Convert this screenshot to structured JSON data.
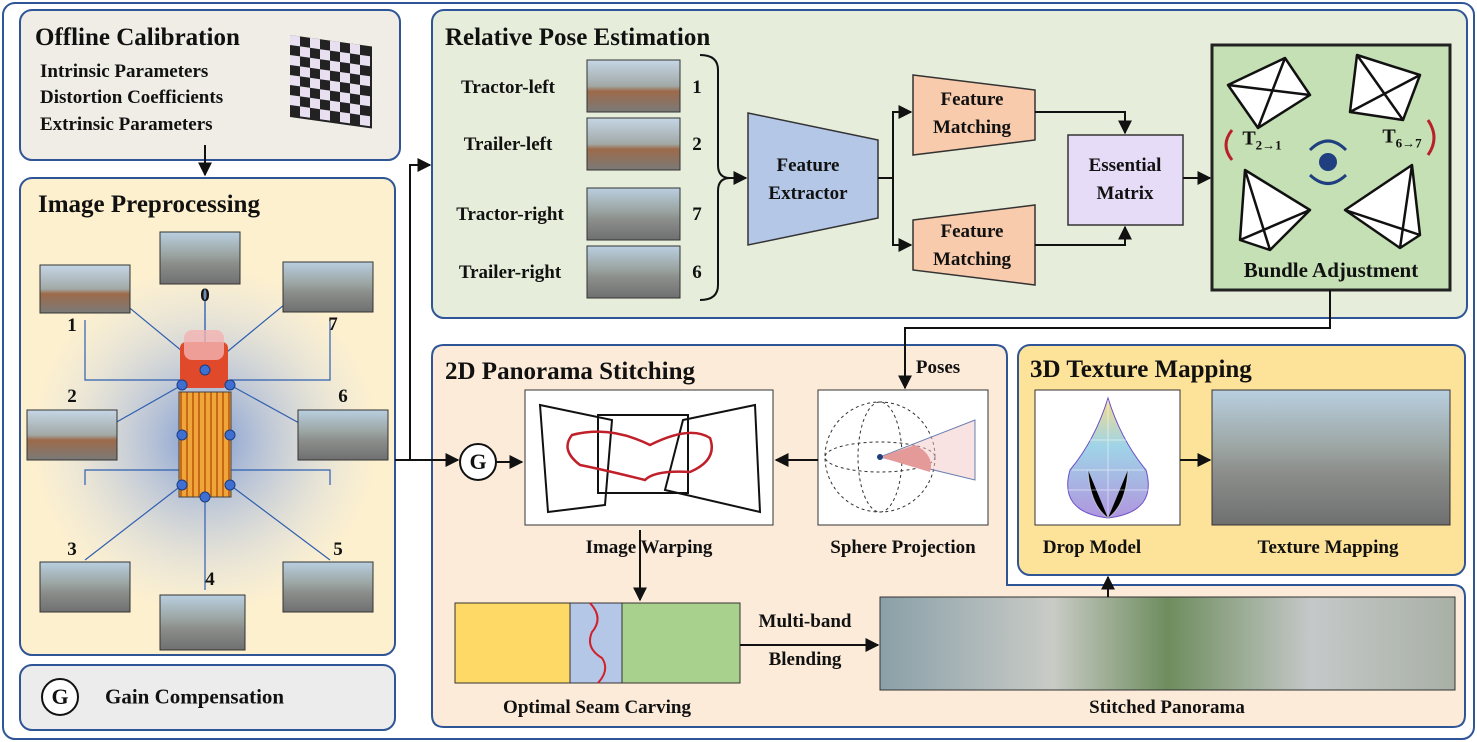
{
  "offline_calibration": {
    "title": "Offline Calibration",
    "items": [
      "Intrinsic Parameters",
      "Distortion Coefficients",
      "Extrinsic Parameters"
    ]
  },
  "image_preprocessing": {
    "title": "Image Preprocessing",
    "cameras": [
      "0",
      "1",
      "7",
      "2",
      "6",
      "3",
      "5",
      "4"
    ]
  },
  "gain_compensation": {
    "symbol": "G",
    "label": "Gain Compensation"
  },
  "relative_pose_estimation": {
    "title": "Relative Pose Estimation",
    "inputs": [
      {
        "label": "Tractor-left",
        "index": "1"
      },
      {
        "label": "Trailer-left",
        "index": "2"
      },
      {
        "label": "Tractor-right",
        "index": "7"
      },
      {
        "label": "Trailer-right",
        "index": "6"
      }
    ],
    "feature_extractor": "Feature Extractor",
    "feature_matching": [
      "Feature Matching",
      "Feature Matching"
    ],
    "essential_matrix": "Essential Matrix",
    "bundle_adjustment": "Bundle Adjustment",
    "transforms": [
      {
        "symbol": "T",
        "subscript": "2→1"
      },
      {
        "symbol": "T",
        "subscript": "6→7"
      }
    ]
  },
  "panorama_stitching": {
    "title": "2D Panorama Stitching",
    "poses": "Poses",
    "image_warping": "Image Warping",
    "sphere_projection": "Sphere Projection",
    "seam_carving": "Optimal Seam Carving",
    "blending": [
      "Multi-band",
      "Blending"
    ],
    "stitched_panorama": "Stitched Panorama"
  },
  "texture_mapping": {
    "title": "3D Texture Mapping",
    "drop_model": "Drop Model",
    "texture_mapping": "Texture Mapping"
  }
}
